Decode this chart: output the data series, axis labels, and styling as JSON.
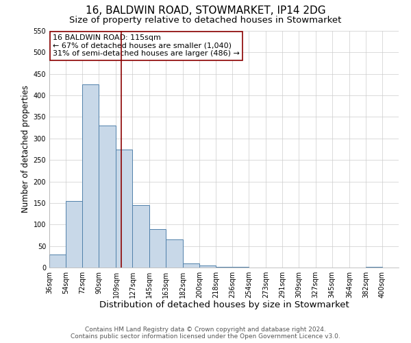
{
  "title": "16, BALDWIN ROAD, STOWMARKET, IP14 2DG",
  "subtitle": "Size of property relative to detached houses in Stowmarket",
  "xlabel": "Distribution of detached houses by size in Stowmarket",
  "ylabel": "Number of detached properties",
  "bar_left_edges": [
    36,
    54,
    72,
    90,
    109,
    127,
    145,
    163,
    182,
    200,
    218,
    236,
    254,
    273,
    291,
    309,
    327,
    345,
    364,
    382
  ],
  "bar_widths": [
    18,
    18,
    18,
    19,
    18,
    18,
    18,
    19,
    18,
    18,
    18,
    18,
    19,
    18,
    18,
    18,
    18,
    19,
    18,
    18
  ],
  "bar_heights": [
    30,
    155,
    425,
    330,
    275,
    145,
    90,
    65,
    10,
    5,
    1,
    1,
    0,
    0,
    0,
    0,
    0,
    0,
    0,
    1
  ],
  "tick_labels": [
    "36sqm",
    "54sqm",
    "72sqm",
    "90sqm",
    "109sqm",
    "127sqm",
    "145sqm",
    "163sqm",
    "182sqm",
    "200sqm",
    "218sqm",
    "236sqm",
    "254sqm",
    "273sqm",
    "291sqm",
    "309sqm",
    "327sqm",
    "345sqm",
    "364sqm",
    "382sqm",
    "400sqm"
  ],
  "tick_positions": [
    36,
    54,
    72,
    90,
    109,
    127,
    145,
    163,
    182,
    200,
    218,
    236,
    254,
    273,
    291,
    309,
    327,
    345,
    364,
    382,
    400
  ],
  "xlim": [
    36,
    418
  ],
  "ylim": [
    0,
    550
  ],
  "yticks": [
    0,
    50,
    100,
    150,
    200,
    250,
    300,
    350,
    400,
    450,
    500,
    550
  ],
  "bar_color": "#c8d8e8",
  "bar_edge_color": "#5080aa",
  "vline_x": 115,
  "vline_color": "#8b0000",
  "annotation_title": "16 BALDWIN ROAD: 115sqm",
  "annotation_line1": "← 67% of detached houses are smaller (1,040)",
  "annotation_line2": "31% of semi-detached houses are larger (486) →",
  "annotation_box_color": "#ffffff",
  "annotation_box_edge_color": "#8b0000",
  "grid_color": "#cccccc",
  "background_color": "#ffffff",
  "footer_line1": "Contains HM Land Registry data © Crown copyright and database right 2024.",
  "footer_line2": "Contains public sector information licensed under the Open Government Licence v3.0.",
  "title_fontsize": 11,
  "subtitle_fontsize": 9.5,
  "xlabel_fontsize": 9.5,
  "ylabel_fontsize": 8.5,
  "tick_fontsize": 7,
  "annotation_fontsize": 8,
  "footer_fontsize": 6.5
}
